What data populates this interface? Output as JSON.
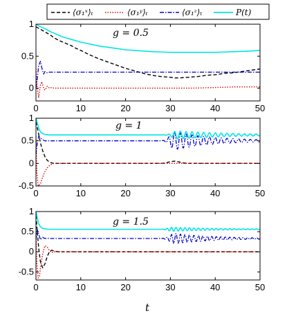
{
  "legend": [
    {
      "label": "⟨σ₁ˣ⟩ₜ",
      "color": "#000000",
      "dash": "dashed"
    },
    {
      "label": "⟨σ₁ʸ⟩ₜ",
      "color": "#dd0000",
      "dash": "dotted"
    },
    {
      "label": "⟨σ₁ᶻ⟩ₜ",
      "color": "#0000cc",
      "dash": "dashdot"
    },
    {
      "label": "P(t)",
      "color": "#00e5e5",
      "dash": "solid"
    }
  ],
  "xlabel": "t",
  "chart_data": [
    {
      "type": "line",
      "annotation": "g = 0.5",
      "xlim": [
        0,
        50
      ],
      "ylim": [
        -0.2,
        1
      ],
      "xticks": [
        "0",
        "10",
        "20",
        "30",
        "40",
        "50"
      ],
      "yticks": [
        {
          "value": 0,
          "label": "0"
        },
        {
          "value": 0.5,
          "label": "0.5"
        },
        {
          "value": 1,
          "label": "1"
        }
      ],
      "series": [
        {
          "name": "⟨σ₁ˣ⟩ₜ",
          "x": [
            0,
            1,
            2,
            3,
            4,
            5,
            6,
            7,
            8,
            9,
            10,
            12,
            14,
            16,
            18,
            20,
            22,
            24,
            26,
            28,
            30,
            31,
            32,
            34,
            36,
            38,
            40,
            42,
            44,
            46,
            48,
            50
          ],
          "y": [
            0.96,
            0.92,
            0.88,
            0.84,
            0.79,
            0.75,
            0.72,
            0.69,
            0.66,
            0.62,
            0.59,
            0.52,
            0.46,
            0.41,
            0.36,
            0.31,
            0.27,
            0.23,
            0.2,
            0.18,
            0.17,
            0.16,
            0.16,
            0.17,
            0.18,
            0.2,
            0.21,
            0.23,
            0.24,
            0.26,
            0.28,
            0.3
          ]
        },
        {
          "name": "⟨σ₁ʸ⟩ₜ",
          "x": [
            0,
            0.3,
            0.6,
            1,
            1.3,
            1.7,
            2,
            2.5,
            3,
            3.5,
            4,
            5,
            6,
            8,
            10,
            15,
            20,
            25,
            30,
            35,
            40,
            45,
            50
          ],
          "y": [
            0.3,
            0.0,
            -0.15,
            0.05,
            0.1,
            0.0,
            -0.03,
            0.03,
            0.0,
            0.01,
            0.0,
            0.0,
            0.0,
            0.0,
            0.0,
            0.0,
            0.0,
            0.0,
            0.0,
            0.0,
            0.01,
            0.02,
            0.02
          ]
        },
        {
          "name": "⟨σ₁ᶻ⟩ₜ",
          "x": [
            0,
            0.3,
            0.6,
            1,
            1.3,
            1.7,
            2,
            2.5,
            3,
            3.5,
            4,
            5,
            6,
            8,
            10,
            15,
            20,
            25,
            30,
            35,
            40,
            45,
            50
          ],
          "y": [
            0.0,
            0.15,
            0.35,
            0.42,
            0.32,
            0.22,
            0.26,
            0.24,
            0.25,
            0.25,
            0.25,
            0.25,
            0.25,
            0.25,
            0.25,
            0.25,
            0.25,
            0.25,
            0.25,
            0.25,
            0.25,
            0.25,
            0.25
          ]
        },
        {
          "name": "P(t)",
          "x": [
            0,
            1,
            2,
            3,
            4,
            5,
            6,
            7,
            8,
            10,
            12,
            14,
            16,
            18,
            20,
            22,
            24,
            26,
            28,
            30,
            32,
            34,
            36,
            38,
            40,
            42,
            44,
            46,
            48,
            50
          ],
          "y": [
            1.0,
            0.96,
            0.93,
            0.89,
            0.86,
            0.83,
            0.8,
            0.78,
            0.76,
            0.72,
            0.69,
            0.66,
            0.64,
            0.62,
            0.6,
            0.59,
            0.58,
            0.57,
            0.565,
            0.56,
            0.56,
            0.56,
            0.56,
            0.56,
            0.56,
            0.565,
            0.57,
            0.575,
            0.58,
            0.59
          ]
        }
      ]
    },
    {
      "type": "line",
      "annotation": "g = 1",
      "xlim": [
        0,
        50
      ],
      "ylim": [
        -0.5,
        1
      ],
      "xticks": [
        "0",
        "10",
        "20",
        "30",
        "40",
        "50"
      ],
      "yticks": [
        {
          "value": -0.5,
          "label": "-0.5"
        },
        {
          "value": 0,
          "label": "0"
        },
        {
          "value": 0.5,
          "label": "0.5"
        },
        {
          "value": 1,
          "label": "1"
        }
      ],
      "series": [
        {
          "name": "⟨σ₁ˣ⟩ₜ",
          "x": [
            0,
            0.5,
            1,
            1.5,
            2,
            2.5,
            3,
            3.5,
            4,
            5,
            6,
            8,
            10,
            20,
            28,
            29,
            30,
            31,
            32,
            33,
            34,
            40,
            50
          ],
          "y": [
            0.92,
            0.7,
            0.45,
            0.28,
            0.15,
            0.07,
            0.03,
            0.01,
            0.0,
            0.0,
            0.0,
            0.0,
            0.0,
            0.0,
            0.0,
            0.01,
            0.04,
            0.05,
            0.03,
            0.01,
            0.0,
            0.0,
            0.0
          ]
        },
        {
          "name": "⟨σ₁ʸ⟩ₜ",
          "x": [
            0,
            0.2,
            0.5,
            1,
            1.5,
            2,
            2.5,
            3,
            3.5,
            4,
            5,
            6,
            8,
            10,
            20,
            30,
            40,
            50
          ],
          "y": [
            0.6,
            -0.2,
            -0.5,
            -0.45,
            -0.3,
            -0.18,
            -0.1,
            -0.05,
            -0.02,
            0.0,
            0.0,
            0.0,
            0.0,
            0.0,
            0.0,
            0.0,
            0.0,
            0.0
          ]
        },
        {
          "name": "⟨σ₁ᶻ⟩ₜ",
          "x": [
            0,
            0.3,
            0.6,
            1,
            1.5,
            2,
            3,
            4,
            5,
            10,
            20,
            28
          ],
          "y": [
            0.2,
            0.45,
            0.6,
            0.57,
            0.52,
            0.5,
            0.5,
            0.5,
            0.5,
            0.5,
            0.5,
            0.5
          ],
          "osc": {
            "start": 28,
            "end": 50,
            "period": 1.3,
            "base": 0.5,
            "amp": 0.2,
            "peak": 31,
            "decay_in": 1.5,
            "decay_out": 9
          }
        },
        {
          "name": "P(t)",
          "x": [
            0,
            0.3,
            0.6,
            1,
            1.5,
            2,
            3,
            4,
            5,
            10,
            20,
            28
          ],
          "y": [
            1.0,
            0.9,
            0.78,
            0.7,
            0.66,
            0.64,
            0.63,
            0.63,
            0.63,
            0.63,
            0.63,
            0.63
          ],
          "osc": {
            "start": 28,
            "end": 50,
            "period": 1.3,
            "base": 0.63,
            "amp": 0.09,
            "peak": 31.5,
            "decay_in": 1.5,
            "decay_out": 12
          }
        }
      ]
    },
    {
      "type": "line",
      "annotation": "g = 1.5",
      "xlim": [
        0,
        50
      ],
      "ylim": [
        -0.7,
        1
      ],
      "xticks": [
        "0",
        "10",
        "20",
        "30",
        "40",
        "50"
      ],
      "yticks": [
        {
          "value": -0.5,
          "label": "-0.5"
        },
        {
          "value": 0,
          "label": "0"
        },
        {
          "value": 0.5,
          "label": "0.5"
        },
        {
          "value": 1,
          "label": "1"
        }
      ],
      "series": [
        {
          "name": "⟨σ₁ˣ⟩ₜ",
          "x": [
            0,
            0.3,
            0.6,
            1,
            1.5,
            2,
            2.5,
            3,
            3.5,
            4,
            5,
            6,
            8,
            10,
            20,
            30,
            40,
            50
          ],
          "y": [
            0.9,
            0.5,
            0.1,
            -0.25,
            -0.4,
            -0.3,
            -0.12,
            0.0,
            0.04,
            0.02,
            0.0,
            0.0,
            0.0,
            0.0,
            0.0,
            0.0,
            0.0,
            0.0
          ]
        },
        {
          "name": "⟨σ₁ʸ⟩ₜ",
          "x": [
            0,
            0.2,
            0.5,
            0.8,
            1,
            1.5,
            2,
            2.5,
            3,
            3.5,
            4,
            5,
            6,
            8,
            10,
            20,
            30,
            40,
            50
          ],
          "y": [
            0.5,
            -0.3,
            -0.65,
            -0.6,
            -0.4,
            -0.05,
            0.15,
            0.12,
            0.03,
            -0.02,
            0.0,
            0.0,
            0.0,
            0.0,
            0.0,
            0.0,
            0.0,
            0.0,
            0.0
          ]
        },
        {
          "name": "⟨σ₁ᶻ⟩ₜ",
          "x": [
            0,
            0.3,
            0.6,
            1,
            1.5,
            2,
            2.5,
            3,
            4,
            5,
            10,
            20,
            28
          ],
          "y": [
            0.3,
            0.55,
            0.45,
            0.3,
            0.36,
            0.33,
            0.34,
            0.33,
            0.33,
            0.33,
            0.33,
            0.33,
            0.33
          ],
          "osc": {
            "start": 28,
            "end": 50,
            "period": 1.0,
            "base": 0.33,
            "amp": 0.13,
            "peak": 31,
            "decay_in": 1.5,
            "decay_out": 9
          }
        },
        {
          "name": "P(t)",
          "x": [
            0,
            0.3,
            0.6,
            1,
            1.5,
            2,
            3,
            4,
            5,
            10,
            20,
            28
          ],
          "y": [
            1.0,
            0.85,
            0.7,
            0.62,
            0.58,
            0.57,
            0.56,
            0.56,
            0.56,
            0.56,
            0.56,
            0.56
          ],
          "osc": {
            "start": 28,
            "end": 50,
            "period": 1.0,
            "base": 0.56,
            "amp": 0.05,
            "peak": 30.5,
            "decay_in": 1.5,
            "decay_out": 10
          }
        }
      ]
    }
  ]
}
